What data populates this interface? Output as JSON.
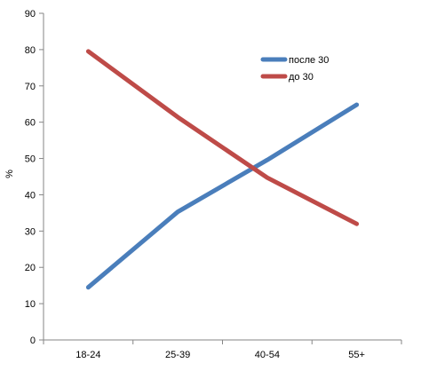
{
  "chart_data": {
    "type": "line",
    "categories": [
      "18-24",
      "25-39",
      "40-54",
      "55+"
    ],
    "series": [
      {
        "name": "после 30",
        "values": [
          14.5,
          35.3,
          49.6,
          64.8
        ],
        "color": "#4a7ebb"
      },
      {
        "name": "до 30",
        "values": [
          79.5,
          61.4,
          44.7,
          32.0
        ],
        "color": "#be4b48"
      }
    ],
    "title": "",
    "xlabel": "",
    "ylabel": "%",
    "ylim": [
      0,
      90
    ],
    "yticks": [
      0,
      10,
      20,
      30,
      40,
      50,
      60,
      70,
      80,
      90
    ],
    "grid": false,
    "legend": "top-right"
  }
}
